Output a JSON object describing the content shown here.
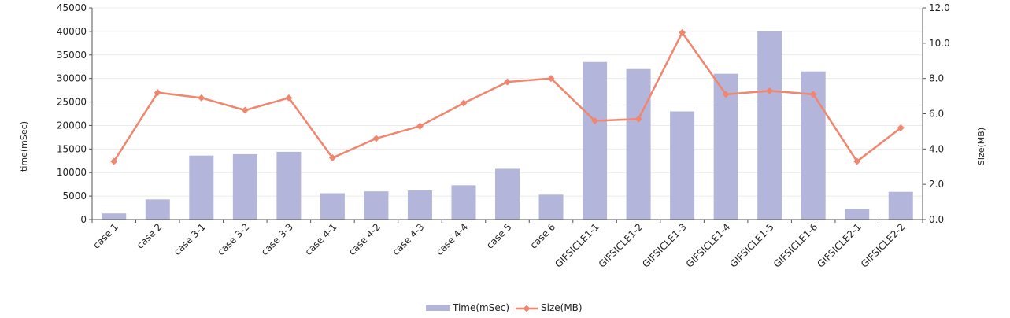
{
  "chart_data": {
    "type": "bar+line",
    "categories": [
      "case 1",
      "case 2",
      "case 3-1",
      "case 3-2",
      "case 3-3",
      "case 4-1",
      "case 4-2",
      "case 4-3",
      "case 4-4",
      "case 5",
      "case 6",
      "GIFSICLE1-1",
      "GIFSICLE1-2",
      "GIFSICLE1-3",
      "GIFSICLE1-4",
      "GIFSICLE1-5",
      "GIFSICLE1-6",
      "GIFSICLE2-1",
      "GIFSICLE2-2"
    ],
    "series": [
      {
        "name": "Time(mSec)",
        "type": "bar",
        "axis": "left",
        "color": "#b3b6da",
        "values": [
          1300,
          4300,
          13600,
          13900,
          14400,
          5600,
          6000,
          6200,
          7300,
          10800,
          5300,
          33500,
          32000,
          23000,
          31000,
          40000,
          31500,
          2300,
          5900
        ]
      },
      {
        "name": "Size(MB)",
        "type": "line",
        "axis": "right",
        "color": "#f0866e",
        "values": [
          3.3,
          7.2,
          6.9,
          6.2,
          6.9,
          3.5,
          4.6,
          5.3,
          6.6,
          7.8,
          8.0,
          5.6,
          5.7,
          10.6,
          7.1,
          7.3,
          7.1,
          3.3,
          5.2
        ]
      }
    ],
    "ylabel": "time(mSec)",
    "y2label": "Size(MB)",
    "ylim": [
      0,
      45000
    ],
    "y2lim": [
      0,
      12
    ],
    "yticks": [
      "0",
      "5000",
      "10000",
      "15000",
      "20000",
      "25000",
      "30000",
      "35000",
      "40000",
      "45000"
    ],
    "y2ticks": [
      "0.0",
      "2.0",
      "4.0",
      "6.0",
      "8.0",
      "10.0",
      "12.0"
    ],
    "grid": true,
    "legend": "bottom-center"
  }
}
